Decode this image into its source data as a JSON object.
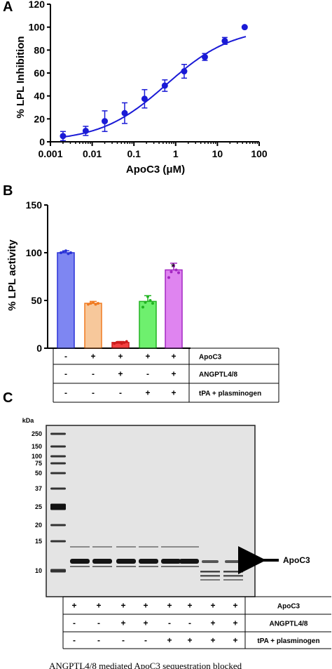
{
  "panel_labels": {
    "a": "A",
    "b": "B",
    "c": "C"
  },
  "chart_data": [
    {
      "type": "scatter",
      "panel": "A",
      "xlabel": "ApoC3 (μM)",
      "ylabel": "% LPL Inhibition",
      "xscale": "log",
      "xlim": [
        0.001,
        100
      ],
      "ylim": [
        0,
        120
      ],
      "xticks": [
        "0.001",
        "0.01",
        "0.1",
        "1",
        "10",
        "100"
      ],
      "yticks": [
        "0",
        "20",
        "40",
        "60",
        "80",
        "100",
        "120"
      ],
      "points": [
        {
          "x": 0.002,
          "y": 5,
          "err": 4
        },
        {
          "x": 0.007,
          "y": 9.5,
          "err": 4
        },
        {
          "x": 0.02,
          "y": 18,
          "err": 9
        },
        {
          "x": 0.06,
          "y": 25,
          "err": 9
        },
        {
          "x": 0.18,
          "y": 37.5,
          "err": 8
        },
        {
          "x": 0.55,
          "y": 49,
          "err": 5
        },
        {
          "x": 1.6,
          "y": 61.5,
          "err": 6
        },
        {
          "x": 5,
          "y": 74,
          "err": 3
        },
        {
          "x": 15,
          "y": 88,
          "err": 3
        },
        {
          "x": 45,
          "y": 100,
          "err": 0
        }
      ],
      "fit": {
        "bottom": 0,
        "top": 100,
        "ec50": 0.6,
        "hill": 0.55
      },
      "color": "#1a1ad6"
    },
    {
      "type": "bar",
      "panel": "B",
      "ylabel": "% LPL activity",
      "ylim": [
        0,
        150
      ],
      "yticks": [
        "0",
        "50",
        "100",
        "150"
      ],
      "values": [
        100,
        47,
        6,
        49,
        82
      ],
      "errors": [
        2,
        2,
        1,
        6,
        7
      ],
      "colors": [
        "#7e86f2",
        "#f7c89b",
        "#f24040",
        "#6ef06e",
        "#df84f0"
      ],
      "edges": [
        "#2a32d6",
        "#f07a20",
        "#cc1a1a",
        "#22b422",
        "#a326c2"
      ],
      "annotation": "*",
      "annotation_bar": 4,
      "dots": [
        [
          100,
          101,
          102,
          99,
          100
        ],
        [
          46,
          47,
          48,
          46,
          47
        ],
        [
          5,
          6,
          6,
          5,
          6,
          7
        ],
        [
          43,
          48,
          54,
          50,
          47
        ],
        [
          74,
          80,
          86,
          82,
          79
        ]
      ]
    }
  ],
  "table_b": {
    "rows": [
      {
        "label": "ApoC3",
        "signs": [
          "-",
          "+",
          "+",
          "+",
          "+"
        ]
      },
      {
        "label": "ANGPTL4/8",
        "signs": [
          "-",
          "-",
          "+",
          "-",
          "+"
        ]
      },
      {
        "label": "tPA + plasminogen",
        "signs": [
          "-",
          "-",
          "-",
          "+",
          "+"
        ]
      }
    ]
  },
  "gel": {
    "unit": "kDa",
    "markers": [
      "250",
      "150",
      "100",
      "75",
      "50",
      "37",
      "25",
      "20",
      "15",
      "10"
    ],
    "band_label": "ApoC3"
  },
  "table_c": {
    "rows": [
      {
        "label": "ApoC3",
        "signs": [
          "+",
          "+",
          "+",
          "+",
          "+",
          "+",
          "+",
          "+"
        ]
      },
      {
        "label": "ANGPTL4/8",
        "signs": [
          "-",
          "-",
          "+",
          "+",
          "-",
          "-",
          "+",
          "+"
        ]
      },
      {
        "label": "tPA + plasminogen",
        "signs": [
          "-",
          "-",
          "-",
          "-",
          "+",
          "+",
          "+",
          "+"
        ]
      }
    ]
  },
  "caption": {
    "text": "ANGPTL4/8 mediated ApoC3 sequestration blocked"
  }
}
